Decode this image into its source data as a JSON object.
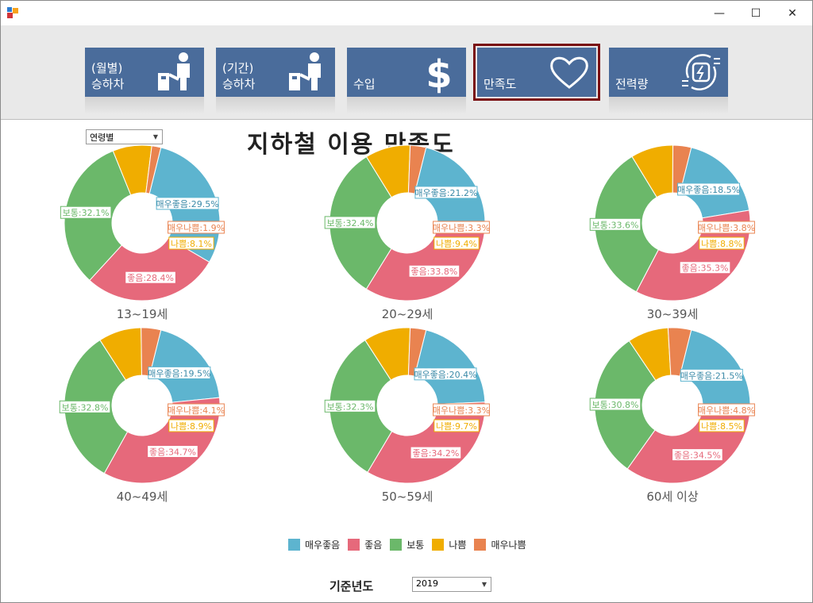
{
  "window": {
    "controls": {
      "minimize": "—",
      "maximize": "☐",
      "close": "✕"
    }
  },
  "nav": [
    {
      "id": "monthly",
      "label": "(월별)\n승하차",
      "icon": "turnstile-icon"
    },
    {
      "id": "period",
      "label": "(기간)\n승하차",
      "icon": "turnstile-icon"
    },
    {
      "id": "revenue",
      "label": "수입",
      "icon": "dollar-icon"
    },
    {
      "id": "satisfaction",
      "label": "만족도",
      "icon": "heart-icon",
      "active": true
    },
    {
      "id": "power",
      "label": "전력량",
      "icon": "power-plug-icon"
    }
  ],
  "filter": {
    "value": "연령별"
  },
  "page_title": "지하철 이용 만족도",
  "colors": {
    "매우좋음": "#5db4cf",
    "좋음": "#e6697b",
    "보통": "#6bb86a",
    "나쁨": "#f0ad00",
    "매우나쁨": "#e98350"
  },
  "chart_data": {
    "type": "donut",
    "categories": [
      "매우좋음",
      "좋음",
      "보통",
      "나쁨",
      "매우나쁨"
    ],
    "charts": [
      {
        "title": "13~19세",
        "values": [
          29.5,
          28.4,
          32.1,
          8.1,
          1.9
        ]
      },
      {
        "title": "20~29세",
        "values": [
          21.2,
          33.8,
          32.4,
          9.4,
          3.3
        ]
      },
      {
        "title": "30~39세",
        "values": [
          18.5,
          35.3,
          33.6,
          8.8,
          3.8
        ]
      },
      {
        "title": "40~49세",
        "values": [
          19.5,
          34.7,
          32.8,
          8.9,
          4.1
        ]
      },
      {
        "title": "50~59세",
        "values": [
          20.4,
          34.2,
          32.3,
          9.7,
          3.3
        ]
      },
      {
        "title": "60세 이상",
        "values": [
          21.5,
          34.5,
          30.8,
          8.5,
          4.8
        ]
      }
    ]
  },
  "legend": [
    "매우좋음",
    "좋음",
    "보통",
    "나쁨",
    "매우나쁨"
  ],
  "year": {
    "label": "기준년도",
    "value": "2019"
  }
}
